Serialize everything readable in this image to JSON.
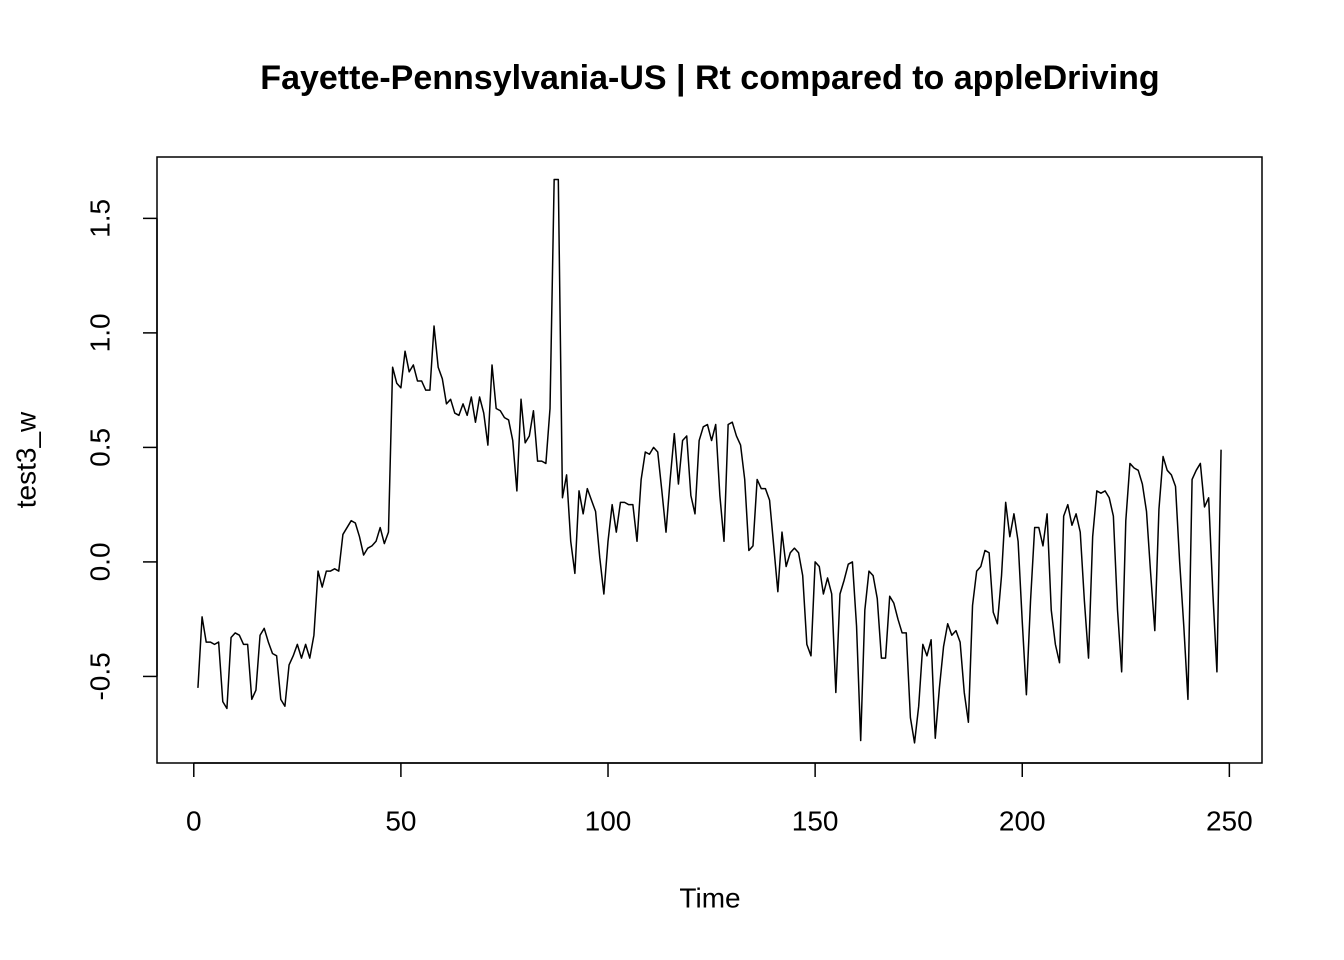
{
  "chart_data": {
    "type": "line",
    "title": "Fayette-Pennsylvania-US | Rt compared to appleDriving",
    "xlabel": "Time",
    "ylabel": "test3_w",
    "color": "#000000",
    "xlim": [
      -8.88,
      257.88
    ],
    "ylim": [
      -0.878,
      1.768
    ],
    "xticks": [
      0,
      50,
      100,
      150,
      200,
      250
    ],
    "yticks": [
      -0.5,
      {
        "value": 0,
        "label": "0.0"
      },
      0.5,
      {
        "value": 1,
        "label": "1.0"
      },
      1.5
    ],
    "x": [
      1,
      2,
      3,
      4,
      5,
      6,
      7,
      8,
      9,
      10,
      11,
      12,
      13,
      14,
      15,
      16,
      17,
      18,
      19,
      20,
      21,
      22,
      23,
      24,
      25,
      26,
      27,
      28,
      29,
      30,
      31,
      32,
      33,
      34,
      35,
      36,
      37,
      38,
      39,
      40,
      41,
      42,
      43,
      44,
      45,
      46,
      47,
      48,
      49,
      50,
      51,
      52,
      53,
      54,
      55,
      56,
      57,
      58,
      59,
      60,
      61,
      62,
      63,
      64,
      65,
      66,
      67,
      68,
      69,
      70,
      71,
      72,
      73,
      74,
      75,
      76,
      77,
      78,
      79,
      80,
      81,
      82,
      83,
      84,
      85,
      86,
      87,
      88,
      89,
      90,
      91,
      92,
      93,
      94,
      95,
      96,
      97,
      98,
      99,
      100,
      101,
      102,
      103,
      104,
      105,
      106,
      107,
      108,
      109,
      110,
      111,
      112,
      113,
      114,
      115,
      116,
      117,
      118,
      119,
      120,
      121,
      122,
      123,
      124,
      125,
      126,
      127,
      128,
      129,
      130,
      131,
      132,
      133,
      134,
      135,
      136,
      137,
      138,
      139,
      140,
      141,
      142,
      143,
      144,
      145,
      146,
      147,
      148,
      149,
      150,
      151,
      152,
      153,
      154,
      155,
      156,
      157,
      158,
      159,
      160,
      161,
      162,
      163,
      164,
      165,
      166,
      167,
      168,
      169,
      170,
      171,
      172,
      173,
      174,
      175,
      176,
      177,
      178,
      179,
      180,
      181,
      182,
      183,
      184,
      185,
      186,
      187,
      188,
      189,
      190,
      191,
      192,
      193,
      194,
      195,
      196,
      197,
      198,
      199,
      200,
      201,
      202,
      203,
      204,
      205,
      206,
      207,
      208,
      209,
      210,
      211,
      212,
      213,
      214,
      215,
      216,
      217,
      218,
      219,
      220,
      221,
      222,
      223,
      224,
      225,
      226,
      227,
      228,
      229,
      230,
      231,
      232,
      233,
      234,
      235,
      236,
      237,
      238,
      239,
      240,
      241,
      242,
      243,
      244,
      245,
      246,
      247,
      248
    ],
    "values": [
      -0.55,
      -0.24,
      -0.35,
      -0.35,
      -0.36,
      -0.35,
      -0.61,
      -0.64,
      -0.33,
      -0.31,
      -0.32,
      -0.36,
      -0.36,
      -0.6,
      -0.56,
      -0.32,
      -0.29,
      -0.35,
      -0.4,
      -0.41,
      -0.6,
      -0.63,
      -0.45,
      -0.41,
      -0.36,
      -0.42,
      -0.36,
      -0.42,
      -0.32,
      -0.04,
      -0.11,
      -0.04,
      -0.04,
      -0.03,
      -0.04,
      0.12,
      0.15,
      0.18,
      0.17,
      0.11,
      0.03,
      0.06,
      0.07,
      0.09,
      0.15,
      0.08,
      0.13,
      0.85,
      0.78,
      0.76,
      0.92,
      0.83,
      0.86,
      0.79,
      0.79,
      0.75,
      0.75,
      1.03,
      0.85,
      0.8,
      0.69,
      0.71,
      0.65,
      0.64,
      0.69,
      0.64,
      0.72,
      0.61,
      0.72,
      0.65,
      0.51,
      0.86,
      0.67,
      0.66,
      0.63,
      0.62,
      0.53,
      0.31,
      0.71,
      0.52,
      0.55,
      0.66,
      0.44,
      0.44,
      0.43,
      0.67,
      1.67,
      1.67,
      0.28,
      0.38,
      0.09,
      -0.05,
      0.31,
      0.21,
      0.32,
      0.27,
      0.22,
      0.02,
      -0.14,
      0.09,
      0.25,
      0.13,
      0.26,
      0.26,
      0.25,
      0.25,
      0.09,
      0.36,
      0.48,
      0.47,
      0.5,
      0.48,
      0.31,
      0.13,
      0.36,
      0.56,
      0.34,
      0.53,
      0.55,
      0.29,
      0.21,
      0.53,
      0.59,
      0.6,
      0.53,
      0.6,
      0.29,
      0.09,
      0.6,
      0.61,
      0.55,
      0.51,
      0.36,
      0.05,
      0.07,
      0.36,
      0.32,
      0.32,
      0.27,
      0.07,
      -0.13,
      0.13,
      -0.02,
      0.04,
      0.06,
      0.04,
      -0.06,
      -0.36,
      -0.41,
      0.0,
      -0.02,
      -0.14,
      -0.07,
      -0.14,
      -0.57,
      -0.14,
      -0.08,
      -0.01,
      0.0,
      -0.28,
      -0.78,
      -0.21,
      -0.04,
      -0.06,
      -0.16,
      -0.42,
      -0.42,
      -0.15,
      -0.18,
      -0.25,
      -0.31,
      -0.31,
      -0.68,
      -0.79,
      -0.63,
      -0.36,
      -0.41,
      -0.34,
      -0.77,
      -0.55,
      -0.37,
      -0.27,
      -0.32,
      -0.3,
      -0.35,
      -0.57,
      -0.7,
      -0.19,
      -0.04,
      -0.02,
      0.05,
      0.04,
      -0.22,
      -0.27,
      -0.06,
      0.26,
      0.11,
      0.21,
      0.09,
      -0.26,
      -0.58,
      -0.17,
      0.15,
      0.15,
      0.07,
      0.21,
      -0.21,
      -0.36,
      -0.44,
      0.2,
      0.25,
      0.16,
      0.21,
      0.13,
      -0.17,
      -0.42,
      0.11,
      0.31,
      0.3,
      0.31,
      0.28,
      0.2,
      -0.21,
      -0.48,
      0.18,
      0.43,
      0.41,
      0.4,
      0.34,
      0.22,
      -0.05,
      -0.3,
      0.23,
      0.46,
      0.4,
      0.38,
      0.33,
      0.0,
      -0.28,
      -0.6,
      0.36,
      0.4,
      0.43,
      0.24,
      0.28,
      -0.13,
      -0.48,
      0.49
    ]
  }
}
